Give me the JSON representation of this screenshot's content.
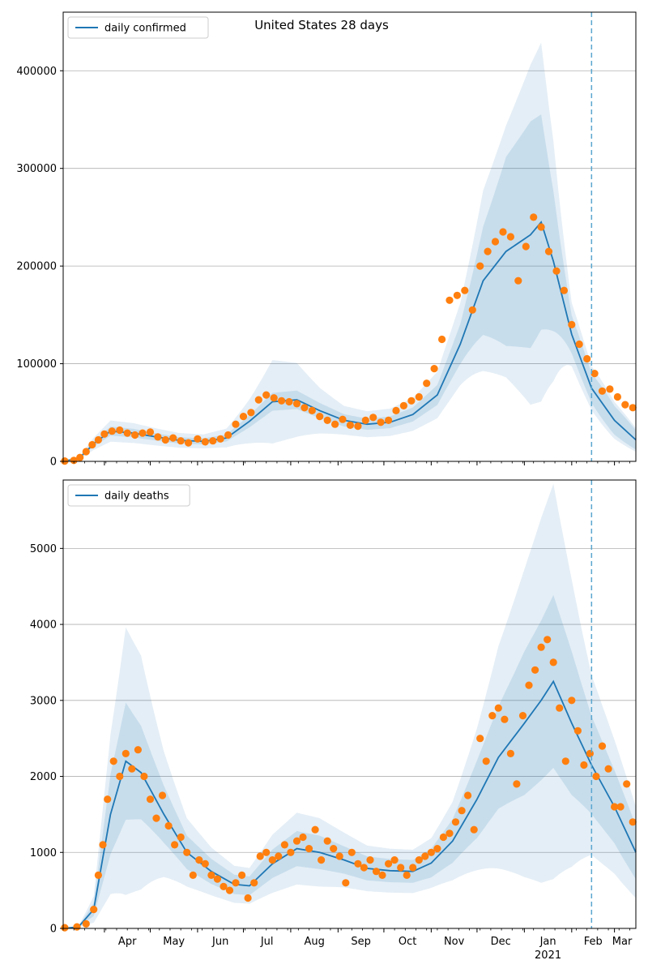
{
  "figure": {
    "title": "United States 28 days"
  },
  "colors": {
    "line": "#1f77b4",
    "band": "#1f77b4",
    "observed": "#ff7f0e",
    "grid": "#b0b0b0",
    "forecast_marker": "#5aa6cf"
  },
  "x_axis": {
    "month_labels": [
      "Apr",
      "May",
      "Jun",
      "Jul",
      "Aug",
      "Sep",
      "Oct",
      "Nov",
      "Dec",
      "Jan",
      "Feb",
      "Mar"
    ],
    "month_dates": [
      "2020-04-01",
      "2020-05-01",
      "2020-06-01",
      "2020-07-01",
      "2020-08-01",
      "2020-09-01",
      "2020-10-01",
      "2020-11-01",
      "2020-12-01",
      "2021-01-01",
      "2021-02-01",
      "2021-03-01"
    ],
    "year_label": "2021",
    "range": [
      "2020-03-05",
      "2021-03-15"
    ],
    "forecast_start": "2021-02-14"
  },
  "chart_data": [
    {
      "type": "line",
      "legend": "daily confirmed",
      "legend_position": "top-left",
      "ylim": [
        0,
        460000
      ],
      "yticks": [
        0,
        100000,
        200000,
        300000,
        400000
      ],
      "ytick_labels": [
        "0",
        "100000",
        "200000",
        "300000",
        "400000"
      ],
      "grid": "horizontal",
      "median": {
        "x": [
          "2020-03-05",
          "2020-03-15",
          "2020-03-25",
          "2020-04-05",
          "2020-04-20",
          "2020-05-05",
          "2020-05-20",
          "2020-06-05",
          "2020-06-20",
          "2020-07-05",
          "2020-07-20",
          "2020-08-05",
          "2020-08-20",
          "2020-09-05",
          "2020-09-20",
          "2020-10-05",
          "2020-10-20",
          "2020-11-05",
          "2020-11-20",
          "2020-12-05",
          "2020-12-20",
          "2021-01-05",
          "2021-01-12",
          "2021-01-20",
          "2021-02-01",
          "2021-02-14",
          "2021-03-01",
          "2021-03-15"
        ],
        "y": [
          500,
          2500,
          18000,
          31000,
          29000,
          25000,
          21500,
          20500,
          24000,
          41000,
          61000,
          63000,
          52000,
          42000,
          38000,
          40000,
          48000,
          68000,
          120000,
          185000,
          215000,
          232000,
          245000,
          205000,
          130000,
          75000,
          42000,
          22000
        ]
      },
      "band_80_halfwidth_fraction": [
        0.15,
        0.15,
        0.15,
        0.15,
        0.15,
        0.15,
        0.15,
        0.15,
        0.15,
        0.15,
        0.15,
        0.15,
        0.15,
        0.15,
        0.15,
        0.15,
        0.15,
        0.15,
        0.17,
        0.3,
        0.45,
        0.5,
        0.45,
        0.35,
        0.15,
        0.2,
        0.35,
        0.45
      ],
      "band_95_halfwidth_fraction": [
        0.35,
        0.35,
        0.35,
        0.35,
        0.35,
        0.35,
        0.35,
        0.35,
        0.4,
        0.55,
        0.7,
        0.6,
        0.45,
        0.35,
        0.35,
        0.35,
        0.35,
        0.35,
        0.35,
        0.5,
        0.6,
        0.75,
        0.75,
        0.6,
        0.25,
        0.3,
        0.45,
        0.55
      ],
      "observed": {
        "x": [
          "2020-03-06",
          "2020-03-12",
          "2020-03-16",
          "2020-03-20",
          "2020-03-24",
          "2020-03-28",
          "2020-04-01",
          "2020-04-06",
          "2020-04-11",
          "2020-04-16",
          "2020-04-21",
          "2020-04-26",
          "2020-05-01",
          "2020-05-06",
          "2020-05-11",
          "2020-05-16",
          "2020-05-21",
          "2020-05-26",
          "2020-06-01",
          "2020-06-06",
          "2020-06-11",
          "2020-06-16",
          "2020-06-21",
          "2020-06-26",
          "2020-07-01",
          "2020-07-06",
          "2020-07-11",
          "2020-07-16",
          "2020-07-21",
          "2020-07-26",
          "2020-07-31",
          "2020-08-05",
          "2020-08-10",
          "2020-08-15",
          "2020-08-20",
          "2020-08-25",
          "2020-08-30",
          "2020-09-04",
          "2020-09-09",
          "2020-09-14",
          "2020-09-19",
          "2020-09-24",
          "2020-09-29",
          "2020-10-04",
          "2020-10-09",
          "2020-10-14",
          "2020-10-19",
          "2020-10-24",
          "2020-10-29",
          "2020-11-03",
          "2020-11-08",
          "2020-11-13",
          "2020-11-18",
          "2020-11-23",
          "2020-11-28",
          "2020-12-03",
          "2020-12-08",
          "2020-12-13",
          "2020-12-18",
          "2020-12-23",
          "2020-12-28",
          "2021-01-02",
          "2021-01-07",
          "2021-01-12",
          "2021-01-17",
          "2021-01-22",
          "2021-01-27",
          "2021-02-01",
          "2021-02-06",
          "2021-02-11",
          "2021-02-16",
          "2021-02-21",
          "2021-02-26",
          "2021-03-03",
          "2021-03-08",
          "2021-03-13"
        ],
        "y": [
          300,
          1000,
          4000,
          10000,
          17000,
          22000,
          28000,
          31000,
          32000,
          29000,
          27000,
          29000,
          30000,
          25000,
          22000,
          24000,
          21000,
          19000,
          23000,
          20000,
          21000,
          23000,
          27000,
          38000,
          46000,
          50000,
          63000,
          68000,
          65000,
          62000,
          61000,
          59000,
          55000,
          52000,
          46000,
          42000,
          38000,
          43000,
          37000,
          36000,
          42000,
          45000,
          40000,
          42000,
          52000,
          57000,
          62000,
          66000,
          80000,
          95000,
          125000,
          165000,
          170000,
          175000,
          155000,
          200000,
          215000,
          225000,
          235000,
          230000,
          185000,
          220000,
          250000,
          240000,
          215000,
          195000,
          175000,
          140000,
          120000,
          105000,
          90000,
          72000,
          74000,
          66000,
          58000,
          55000
        ]
      }
    },
    {
      "type": "line",
      "legend": "daily deaths",
      "legend_position": "top-left",
      "ylim": [
        0,
        5900
      ],
      "yticks": [
        0,
        1000,
        2000,
        3000,
        4000,
        5000
      ],
      "ytick_labels": [
        "0",
        "1000",
        "2000",
        "3000",
        "4000",
        "5000"
      ],
      "grid": "horizontal",
      "median": {
        "x": [
          "2020-03-05",
          "2020-03-15",
          "2020-03-25",
          "2020-04-05",
          "2020-04-15",
          "2020-04-25",
          "2020-05-10",
          "2020-05-25",
          "2020-06-10",
          "2020-06-25",
          "2020-07-05",
          "2020-07-20",
          "2020-08-05",
          "2020-08-20",
          "2020-09-05",
          "2020-09-20",
          "2020-10-05",
          "2020-10-20",
          "2020-11-01",
          "2020-11-15",
          "2020-12-01",
          "2020-12-15",
          "2021-01-01",
          "2021-01-12",
          "2021-01-20",
          "2021-02-01",
          "2021-02-14",
          "2021-03-01",
          "2021-03-15"
        ],
        "y": [
          0,
          20,
          250,
          1500,
          2200,
          2050,
          1500,
          1000,
          750,
          580,
          560,
          850,
          1050,
          1000,
          900,
          790,
          760,
          750,
          860,
          1150,
          1700,
          2250,
          2700,
          3000,
          3250,
          2700,
          2150,
          1600,
          1000
        ]
      },
      "band_80_halfwidth_fraction": [
        0.3,
        0.3,
        0.35,
        0.35,
        0.35,
        0.3,
        0.25,
        0.22,
        0.22,
        0.22,
        0.22,
        0.22,
        0.22,
        0.22,
        0.2,
        0.2,
        0.2,
        0.2,
        0.22,
        0.25,
        0.3,
        0.3,
        0.35,
        0.35,
        0.35,
        0.35,
        0.3,
        0.3,
        0.35
      ],
      "band_95_halfwidth_fraction": [
        0.6,
        0.6,
        0.7,
        0.7,
        0.8,
        0.75,
        0.55,
        0.45,
        0.42,
        0.42,
        0.42,
        0.45,
        0.45,
        0.45,
        0.4,
        0.38,
        0.38,
        0.38,
        0.38,
        0.45,
        0.55,
        0.65,
        0.75,
        0.8,
        0.8,
        0.7,
        0.55,
        0.55,
        0.6
      ],
      "observed": {
        "x": [
          "2020-03-06",
          "2020-03-14",
          "2020-03-20",
          "2020-03-25",
          "2020-03-28",
          "2020-03-31",
          "2020-04-03",
          "2020-04-07",
          "2020-04-11",
          "2020-04-15",
          "2020-04-19",
          "2020-04-23",
          "2020-04-27",
          "2020-05-01",
          "2020-05-05",
          "2020-05-09",
          "2020-05-13",
          "2020-05-17",
          "2020-05-21",
          "2020-05-25",
          "2020-05-29",
          "2020-06-02",
          "2020-06-06",
          "2020-06-10",
          "2020-06-14",
          "2020-06-18",
          "2020-06-22",
          "2020-06-26",
          "2020-06-30",
          "2020-07-04",
          "2020-07-08",
          "2020-07-12",
          "2020-07-16",
          "2020-07-20",
          "2020-07-24",
          "2020-07-28",
          "2020-08-01",
          "2020-08-05",
          "2020-08-09",
          "2020-08-13",
          "2020-08-17",
          "2020-08-21",
          "2020-08-25",
          "2020-08-29",
          "2020-09-02",
          "2020-09-06",
          "2020-09-10",
          "2020-09-14",
          "2020-09-18",
          "2020-09-22",
          "2020-09-26",
          "2020-09-30",
          "2020-10-04",
          "2020-10-08",
          "2020-10-12",
          "2020-10-16",
          "2020-10-20",
          "2020-10-24",
          "2020-10-28",
          "2020-11-01",
          "2020-11-05",
          "2020-11-09",
          "2020-11-13",
          "2020-11-17",
          "2020-11-21",
          "2020-11-25",
          "2020-11-29",
          "2020-12-03",
          "2020-12-07",
          "2020-12-11",
          "2020-12-15",
          "2020-12-19",
          "2020-12-23",
          "2020-12-27",
          "2020-12-31",
          "2021-01-04",
          "2021-01-08",
          "2021-01-12",
          "2021-01-16",
          "2021-01-20",
          "2021-01-24",
          "2021-01-28",
          "2021-02-01",
          "2021-02-05",
          "2021-02-09",
          "2021-02-13",
          "2021-02-17",
          "2021-02-21",
          "2021-02-25",
          "2021-03-01",
          "2021-03-05",
          "2021-03-09",
          "2021-03-13"
        ],
        "y": [
          10,
          20,
          60,
          250,
          700,
          1100,
          1700,
          2200,
          2000,
          2300,
          2100,
          2350,
          2000,
          1700,
          1450,
          1750,
          1350,
          1100,
          1200,
          1000,
          700,
          900,
          850,
          700,
          650,
          550,
          500,
          600,
          700,
          400,
          600,
          950,
          1000,
          900,
          950,
          1100,
          1000,
          1150,
          1200,
          1050,
          1300,
          900,
          1150,
          1050,
          950,
          600,
          1000,
          850,
          800,
          900,
          750,
          700,
          850,
          900,
          800,
          700,
          800,
          900,
          950,
          1000,
          1050,
          1200,
          1250,
          1400,
          1550,
          1750,
          1300,
          2500,
          2200,
          2800,
          2900,
          2750,
          2300,
          1900,
          2800,
          3200,
          3400,
          3700,
          3800,
          3500,
          2900,
          2200,
          3000,
          2600,
          2150,
          2300,
          2000,
          2400,
          2100,
          1600,
          1600,
          1900,
          1400
        ]
      }
    }
  ]
}
